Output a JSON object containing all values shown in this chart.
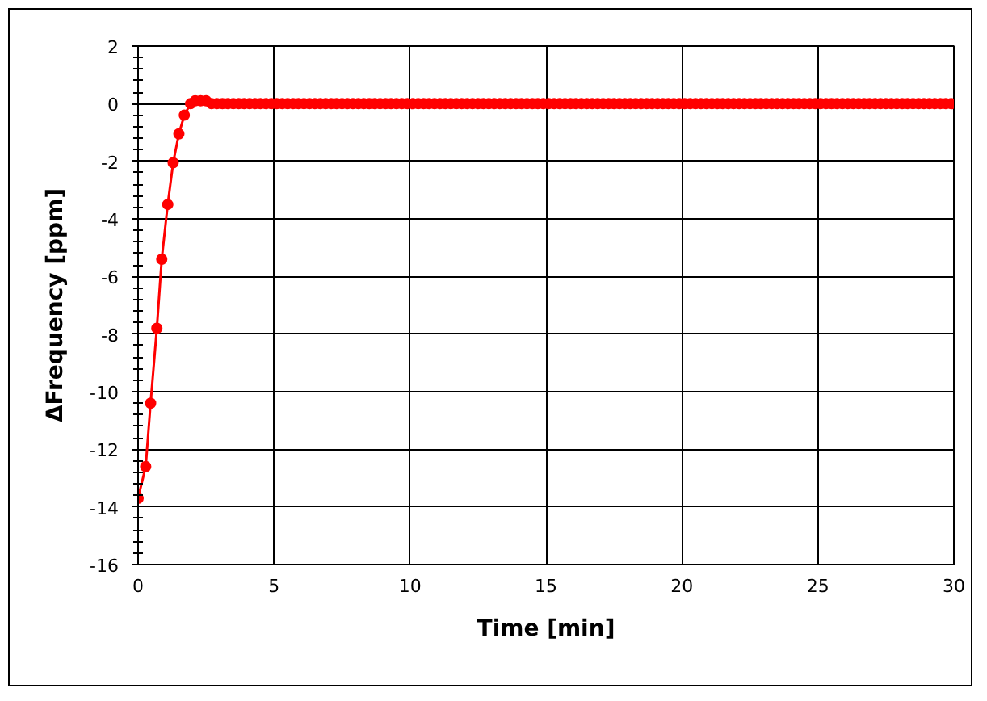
{
  "chart_data": {
    "type": "line",
    "xlabel": "Time [min]",
    "ylabel": "ΔFrequency [ppm]",
    "xlim": [
      0,
      30
    ],
    "ylim": [
      -16,
      2
    ],
    "xticks": [
      0,
      5,
      10,
      15,
      20,
      25,
      30
    ],
    "yticks": [
      -16,
      -14,
      -12,
      -10,
      -8,
      -6,
      -4,
      -2,
      0,
      2
    ],
    "grid": true,
    "marker": "circle",
    "line_style": "solid",
    "series": [
      {
        "color": "#ff0000",
        "x": [
          0,
          0.28,
          0.46,
          0.69,
          0.87,
          1.09,
          1.29,
          1.5,
          1.7,
          1.93,
          2.1,
          2.3,
          2.5,
          2.7,
          2.9,
          3.1,
          3.3,
          3.5,
          3.7,
          3.9,
          4.1,
          4.3,
          4.5,
          4.7,
          4.9,
          5.1,
          5.3,
          5.5,
          5.7,
          5.9,
          6.1,
          6.3,
          6.5,
          6.7,
          6.9,
          7.1,
          7.3,
          7.5,
          7.7,
          7.9,
          8.1,
          8.3,
          8.5,
          8.7,
          8.9,
          9.1,
          9.3,
          9.5,
          9.7,
          9.9,
          10.1,
          10.3,
          10.5,
          10.7,
          10.9,
          11.1,
          11.3,
          11.5,
          11.7,
          11.9,
          12.1,
          12.3,
          12.5,
          12.7,
          12.9,
          13.1,
          13.3,
          13.5,
          13.7,
          13.9,
          14.1,
          14.3,
          14.5,
          14.7,
          14.9,
          15.1,
          15.3,
          15.5,
          15.7,
          15.9,
          16.1,
          16.3,
          16.5,
          16.7,
          16.9,
          17.1,
          17.3,
          17.5,
          17.7,
          17.9,
          18.1,
          18.3,
          18.5,
          18.7,
          18.9,
          19.1,
          19.3,
          19.5,
          19.7,
          19.9,
          20.1,
          20.3,
          20.5,
          20.7,
          20.9,
          21.1,
          21.3,
          21.5,
          21.7,
          21.9,
          22.1,
          22.3,
          22.5,
          22.7,
          22.9,
          23.1,
          23.3,
          23.5,
          23.7,
          23.9,
          24.1,
          24.3,
          24.5,
          24.7,
          24.9,
          25.1,
          25.3,
          25.5,
          25.7,
          25.9,
          26.1,
          26.3,
          26.5,
          26.7,
          26.9,
          27.1,
          27.3,
          27.5,
          27.7,
          27.9,
          28.1,
          28.3,
          28.5,
          28.7,
          28.9,
          29.1,
          29.3,
          29.5,
          29.7,
          29.9
        ],
        "values": [
          -13.7,
          -12.6,
          -10.4,
          -7.8,
          -5.4,
          -3.5,
          -2.05,
          -1.05,
          -0.4,
          0,
          0.1,
          0.1,
          0.1,
          0,
          0,
          0,
          0,
          0,
          0,
          0,
          0,
          0,
          0,
          0,
          0,
          0,
          0,
          0,
          0,
          0,
          0,
          0,
          0,
          0,
          0,
          0,
          0,
          0,
          0,
          0,
          0,
          0,
          0,
          0,
          0,
          0,
          0,
          0,
          0,
          0,
          0,
          0,
          0,
          0,
          0,
          0,
          0,
          0,
          0,
          0,
          0,
          0,
          0,
          0,
          0,
          0,
          0,
          0,
          0,
          0,
          0,
          0,
          0,
          0,
          0,
          0,
          0,
          0,
          0,
          0,
          0,
          0,
          0,
          0,
          0,
          0,
          0,
          0,
          0,
          0,
          0,
          0,
          0,
          0,
          0,
          0,
          0,
          0,
          0,
          0,
          0,
          0,
          0,
          0,
          0,
          0,
          0,
          0,
          0,
          0,
          0,
          0,
          0,
          0,
          0,
          0,
          0,
          0,
          0,
          0,
          0,
          0,
          0,
          0,
          0,
          0,
          0,
          0,
          0,
          0,
          0,
          0,
          0,
          0,
          0,
          0,
          0,
          0,
          0,
          0,
          0,
          0,
          0,
          0,
          0,
          0,
          0,
          0,
          0,
          0
        ]
      }
    ]
  }
}
